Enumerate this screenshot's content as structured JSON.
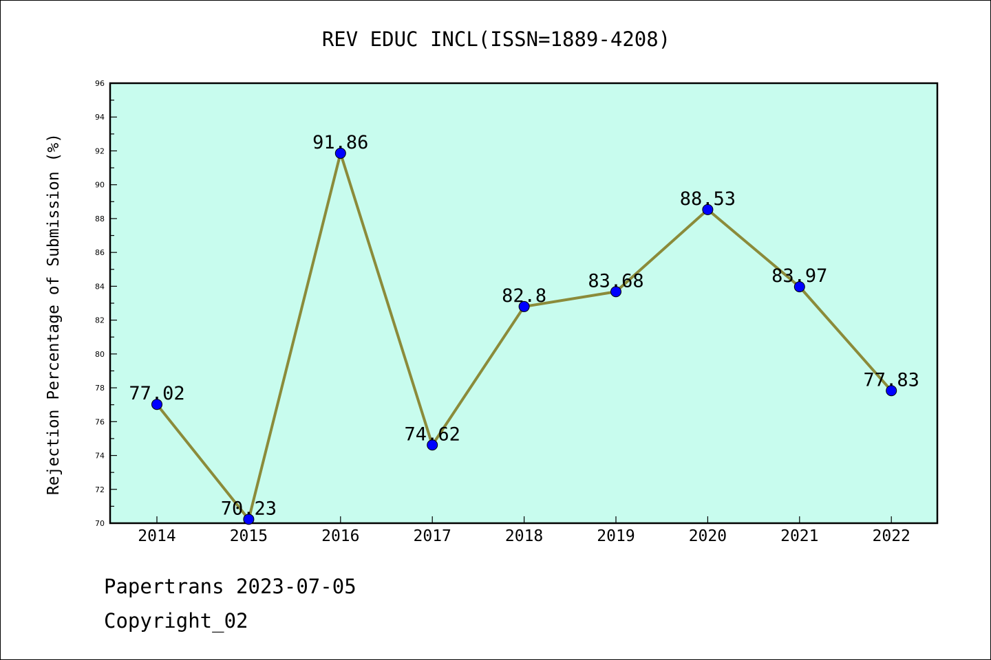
{
  "chart_data": {
    "type": "line",
    "title": "REV EDUC INCL(ISSN=1889-4208)",
    "xlabel": "",
    "ylabel": "Rejection Percentage of Submission (%)",
    "categories": [
      "2014",
      "2015",
      "2016",
      "2017",
      "2018",
      "2019",
      "2020",
      "2021",
      "2022"
    ],
    "series": [
      {
        "values": [
          77.02,
          70.23,
          91.86,
          74.62,
          82.8,
          83.68,
          88.53,
          83.97,
          77.83
        ],
        "labels": [
          "77.02",
          "70.23",
          "91.86",
          "74.62",
          "82.8",
          "83.68",
          "88.53",
          "83.97",
          "77.83"
        ]
      }
    ],
    "ylim": [
      70,
      96
    ],
    "yticks": [
      "70",
      "72",
      "74",
      "76",
      "78",
      "80",
      "82",
      "84",
      "86",
      "88",
      "90",
      "92",
      "94",
      "96"
    ],
    "grid": false,
    "legend": "none",
    "colors": {
      "plot_background": "#c8fcee",
      "line": "#8b8b3a",
      "marker": "#0000ff"
    }
  },
  "footer": {
    "line1": "Papertrans 2023-07-05",
    "line2": "Copyright_02"
  }
}
